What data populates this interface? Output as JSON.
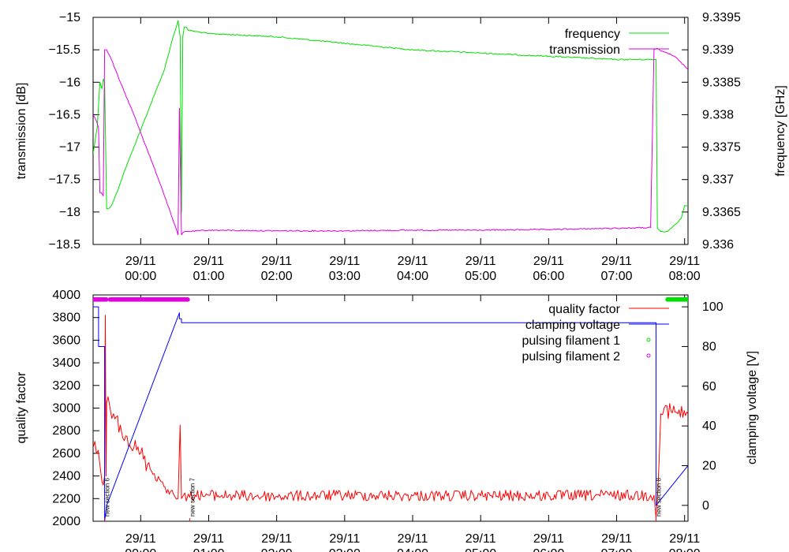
{
  "chart_data": [
    {
      "type": "line",
      "title": "",
      "xlabel": "",
      "ylabel": "transmission [dB]",
      "y2label": "frequency [GHz]",
      "ylim": [
        -18.5,
        -15
      ],
      "y2lim": [
        9.336,
        9.3395
      ],
      "xlim": [
        -0.7,
        8.05
      ],
      "y_ticks": [
        {
          "v": -15,
          "label": "−15"
        },
        {
          "v": -15.5,
          "label": "−15.5"
        },
        {
          "v": -16,
          "label": "−16"
        },
        {
          "v": -16.5,
          "label": "−16.5"
        },
        {
          "v": -17,
          "label": "−17"
        },
        {
          "v": -17.5,
          "label": "−17.5"
        },
        {
          "v": -18,
          "label": "−18"
        },
        {
          "v": -18.5,
          "label": "−18.5"
        }
      ],
      "y2_ticks": [
        {
          "v": 9.3395,
          "label": "9.3395"
        },
        {
          "v": 9.339,
          "label": "9.339"
        },
        {
          "v": 9.3385,
          "label": "9.3385"
        },
        {
          "v": 9.338,
          "label": "9.338"
        },
        {
          "v": 9.3375,
          "label": "9.3375"
        },
        {
          "v": 9.337,
          "label": "9.337"
        },
        {
          "v": 9.3365,
          "label": "9.3365"
        },
        {
          "v": 9.336,
          "label": "9.336"
        }
      ],
      "x_ticks": [
        {
          "v": 0,
          "date": "29/11",
          "time": "00:00"
        },
        {
          "v": 1,
          "date": "29/11",
          "time": "01:00"
        },
        {
          "v": 2,
          "date": "29/11",
          "time": "02:00"
        },
        {
          "v": 3,
          "date": "29/11",
          "time": "03:00"
        },
        {
          "v": 4,
          "date": "29/11",
          "time": "04:00"
        },
        {
          "v": 5,
          "date": "29/11",
          "time": "05:00"
        },
        {
          "v": 6,
          "date": "29/11",
          "time": "06:00"
        },
        {
          "v": 7,
          "date": "29/11",
          "time": "07:00"
        },
        {
          "v": 8,
          "date": "29/11",
          "time": "08:00"
        }
      ],
      "legend_position": "top-right",
      "series": [
        {
          "name": "frequency",
          "axis": "right",
          "color": "#00e000",
          "x": [
            -0.7,
            -0.64,
            -0.6,
            -0.57,
            -0.55,
            -0.53,
            -0.5,
            -0.48,
            -0.43,
            -0.35,
            -0.25,
            -0.1,
            0.05,
            0.2,
            0.35,
            0.45,
            0.55,
            0.58,
            0.6,
            0.62,
            0.64,
            0.67,
            0.7,
            1.0,
            2.0,
            3.0,
            4.0,
            5.0,
            6.0,
            7.0,
            7.55,
            7.58,
            7.6,
            7.65,
            7.75,
            7.85,
            7.95,
            8.0,
            8.05
          ],
          "y": [
            9.3374,
            9.3378,
            9.3385,
            9.3384,
            9.33855,
            9.3385,
            9.33655,
            9.33655,
            9.3366,
            9.3368,
            9.3371,
            9.3375,
            9.3379,
            9.3383,
            9.3387,
            9.3391,
            9.33945,
            9.3392,
            9.3365,
            9.3392,
            9.33935,
            9.33935,
            9.3393,
            9.33925,
            9.3392,
            9.3391,
            9.339,
            9.33895,
            9.3389,
            9.33885,
            9.33885,
            9.33885,
            9.33625,
            9.3362,
            9.3362,
            9.3363,
            9.3364,
            9.3366,
            9.3366
          ]
        },
        {
          "name": "transmission",
          "axis": "left",
          "color": "#e000e0",
          "x": [
            -0.7,
            -0.65,
            -0.62,
            -0.6,
            -0.58,
            -0.55,
            -0.53,
            -0.5,
            -0.48,
            -0.45,
            -0.3,
            -0.1,
            0.1,
            0.3,
            0.45,
            0.55,
            0.57,
            0.6,
            0.62,
            0.65,
            0.7,
            1.0,
            2.0,
            3.0,
            4.0,
            5.0,
            6.0,
            7.0,
            7.5,
            7.55,
            7.6,
            7.65,
            7.75,
            7.85,
            8.0,
            8.05
          ],
          "y": [
            -16.5,
            -16.6,
            -16.7,
            -17.7,
            -17.7,
            -17.75,
            -15.5,
            -15.5,
            -15.55,
            -15.6,
            -16.0,
            -16.5,
            -17.05,
            -17.6,
            -18.05,
            -18.35,
            -16.4,
            -18.35,
            -18.32,
            -18.3,
            -18.3,
            -18.28,
            -18.29,
            -18.29,
            -18.28,
            -18.28,
            -18.27,
            -18.25,
            -18.24,
            -15.5,
            -15.48,
            -15.52,
            -15.55,
            -15.6,
            -15.75,
            -15.8
          ]
        }
      ]
    },
    {
      "type": "line",
      "title": "",
      "xlabel": "",
      "ylabel": "quality factor",
      "y2label": "clamping voltage [V]",
      "ylim": [
        2000,
        4000
      ],
      "y2lim": [
        -8,
        106
      ],
      "xlim": [
        -0.7,
        8.05
      ],
      "y_ticks": [
        {
          "v": 4000,
          "label": "4000"
        },
        {
          "v": 3800,
          "label": "3800"
        },
        {
          "v": 3600,
          "label": "3600"
        },
        {
          "v": 3400,
          "label": "3400"
        },
        {
          "v": 3200,
          "label": "3200"
        },
        {
          "v": 3000,
          "label": "3000"
        },
        {
          "v": 2800,
          "label": "2800"
        },
        {
          "v": 2600,
          "label": "2600"
        },
        {
          "v": 2400,
          "label": "2400"
        },
        {
          "v": 2200,
          "label": "2200"
        },
        {
          "v": 2000,
          "label": "2000"
        }
      ],
      "y2_ticks": [
        {
          "v": 100,
          "label": "100"
        },
        {
          "v": 80,
          "label": "80"
        },
        {
          "v": 60,
          "label": "60"
        },
        {
          "v": 40,
          "label": "40"
        },
        {
          "v": 20,
          "label": "20"
        },
        {
          "v": 0,
          "label": "0"
        }
      ],
      "x_ticks": [
        {
          "v": 0,
          "date": "29/11",
          "time": "00:00"
        },
        {
          "v": 1,
          "date": "29/11",
          "time": "01:00"
        },
        {
          "v": 2,
          "date": "29/11",
          "time": "02:00"
        },
        {
          "v": 3,
          "date": "29/11",
          "time": "03:00"
        },
        {
          "v": 4,
          "date": "29/11",
          "time": "04:00"
        },
        {
          "v": 5,
          "date": "29/11",
          "time": "05:00"
        },
        {
          "v": 6,
          "date": "29/11",
          "time": "06:00"
        },
        {
          "v": 7,
          "date": "29/11",
          "time": "07:00"
        },
        {
          "v": 8,
          "date": "29/11",
          "time": "08:00"
        }
      ],
      "legend_position": "top-right",
      "series": [
        {
          "name": "quality factor",
          "axis": "left",
          "color": "#ff0000",
          "x": [
            -0.7,
            -0.65,
            -0.6,
            -0.57,
            -0.55,
            -0.53,
            -0.52,
            -0.51,
            -0.5,
            -0.48,
            -0.45,
            -0.4,
            -0.3,
            -0.2,
            -0.1,
            0.0,
            0.1,
            0.2,
            0.3,
            0.4,
            0.5,
            0.55,
            0.58,
            0.6,
            0.63,
            0.67,
            0.7,
            0.8,
            1.0,
            2.0,
            3.0,
            4.0,
            5.0,
            6.0,
            7.0,
            7.5,
            7.55,
            7.58,
            7.6,
            7.65,
            7.7,
            7.8,
            7.9,
            8.05
          ],
          "y": [
            2650,
            2600,
            2500,
            2350,
            2320,
            2400,
            3820,
            2400,
            3050,
            3100,
            3000,
            2950,
            2850,
            2750,
            2650,
            2600,
            2500,
            2420,
            2350,
            2280,
            2220,
            2200,
            2850,
            2200,
            2230,
            2180,
            2240,
            2230,
            2230,
            2220,
            2230,
            2225,
            2225,
            2225,
            2230,
            2230,
            2230,
            2030,
            2200,
            2950,
            3000,
            2970,
            2950,
            2950
          ]
        },
        {
          "name": "clamping voltage",
          "axis": "right",
          "color": "#0000ff",
          "x": [
            -0.7,
            -0.62,
            -0.62,
            -0.53,
            -0.53,
            -0.5,
            0.57,
            0.57,
            0.6,
            0.6,
            0.65,
            7.55,
            7.58,
            7.58,
            8.05
          ],
          "y": [
            100,
            100,
            80,
            80,
            -8,
            0,
            97,
            94,
            94,
            92,
            92,
            92,
            92,
            0,
            20
          ]
        },
        {
          "name": "pulsing filament 1",
          "axis": "left",
          "color": "#00e000",
          "x_ranges": [
            [
              7.75,
              8.05
            ]
          ],
          "y": 3960
        },
        {
          "name": "pulsing filament 2",
          "axis": "left",
          "color": "#e000e0",
          "x_ranges": [
            [
              -0.7,
              -0.5
            ],
            [
              -0.45,
              0.7
            ]
          ],
          "y": 3960
        }
      ],
      "markers": [
        {
          "x": -0.53,
          "label": "new section 6"
        },
        {
          "x": 0.72,
          "label": "new section 7"
        },
        {
          "x": 7.58,
          "label": "new section 8"
        }
      ]
    }
  ]
}
